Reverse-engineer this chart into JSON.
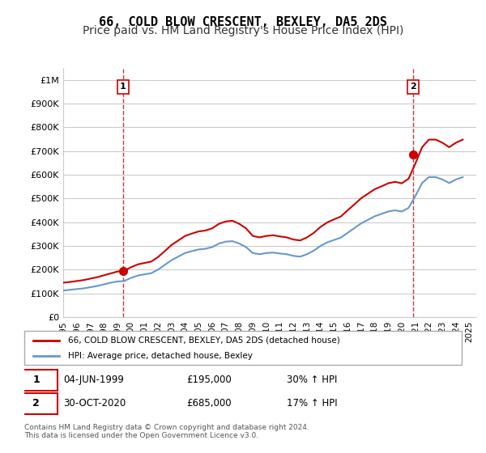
{
  "title": "66, COLD BLOW CRESCENT, BEXLEY, DA5 2DS",
  "subtitle": "Price paid vs. HM Land Registry's House Price Index (HPI)",
  "ylabel": "",
  "ylim": [
    0,
    1050000
  ],
  "yticks": [
    0,
    100000,
    200000,
    300000,
    400000,
    500000,
    600000,
    700000,
    800000,
    900000,
    1000000
  ],
  "ytick_labels": [
    "£0",
    "£100K",
    "£200K",
    "£300K",
    "£400K",
    "£500K",
    "£600K",
    "£700K",
    "£800K",
    "£900K",
    "£1M"
  ],
  "sale1": {
    "date_num": 1999.42,
    "price": 195000,
    "label": "1"
  },
  "sale2": {
    "date_num": 2020.83,
    "price": 685000,
    "label": "2"
  },
  "sale1_info": "04-JUN-1999    £195,000    30% ↑ HPI",
  "sale2_info": "30-OCT-2020    £685,000    17% ↑ HPI",
  "legend_house": "66, COLD BLOW CRESCENT, BEXLEY, DA5 2DS (detached house)",
  "legend_hpi": "HPI: Average price, detached house, Bexley",
  "footer": "Contains HM Land Registry data © Crown copyright and database right 2024.\nThis data is licensed under the Open Government Licence v3.0.",
  "house_color": "#cc0000",
  "hpi_color": "#6699cc",
  "dashed_color": "#cc0000",
  "background_chart": "#ffffff",
  "background_fig": "#ffffff",
  "grid_color": "#cccccc",
  "title_fontsize": 11,
  "subtitle_fontsize": 10,
  "hpi_data_x": [
    1995,
    1995.5,
    1996,
    1996.5,
    1997,
    1997.5,
    1998,
    1998.5,
    1999,
    1999.5,
    2000,
    2000.5,
    2001,
    2001.5,
    2002,
    2002.5,
    2003,
    2003.5,
    2004,
    2004.5,
    2005,
    2005.5,
    2006,
    2006.5,
    2007,
    2007.5,
    2008,
    2008.5,
    2009,
    2009.5,
    2010,
    2010.5,
    2011,
    2011.5,
    2012,
    2012.5,
    2013,
    2013.5,
    2014,
    2014.5,
    2015,
    2015.5,
    2016,
    2016.5,
    2017,
    2017.5,
    2018,
    2018.5,
    2019,
    2019.5,
    2020,
    2020.5,
    2021,
    2021.5,
    2022,
    2022.5,
    2023,
    2023.5,
    2024,
    2024.5
  ],
  "hpi_data_y": [
    112000,
    115000,
    118000,
    121000,
    126000,
    131000,
    138000,
    145000,
    150000,
    152000,
    165000,
    175000,
    180000,
    185000,
    200000,
    220000,
    240000,
    255000,
    270000,
    278000,
    285000,
    288000,
    295000,
    310000,
    318000,
    320000,
    310000,
    295000,
    270000,
    265000,
    270000,
    272000,
    268000,
    265000,
    258000,
    255000,
    265000,
    280000,
    300000,
    315000,
    325000,
    335000,
    355000,
    375000,
    395000,
    410000,
    425000,
    435000,
    445000,
    450000,
    445000,
    460000,
    510000,
    565000,
    590000,
    590000,
    580000,
    565000,
    580000,
    590000
  ],
  "house_data_x": [
    1995,
    1995.5,
    1996,
    1996.5,
    1997,
    1997.5,
    1998,
    1998.5,
    1999,
    1999.5,
    2000,
    2000.5,
    2001,
    2001.5,
    2002,
    2002.5,
    2003,
    2003.5,
    2004,
    2004.5,
    2005,
    2005.5,
    2006,
    2006.5,
    2007,
    2007.5,
    2008,
    2008.5,
    2009,
    2009.5,
    2010,
    2010.5,
    2011,
    2011.5,
    2012,
    2012.5,
    2013,
    2013.5,
    2014,
    2014.5,
    2015,
    2015.5,
    2016,
    2016.5,
    2017,
    2017.5,
    2018,
    2018.5,
    2019,
    2019.5,
    2020,
    2020.5,
    2021,
    2021.5,
    2022,
    2022.5,
    2023,
    2023.5,
    2024,
    2024.5
  ],
  "house_data_y": [
    145000,
    148000,
    152000,
    156000,
    162000,
    168000,
    176000,
    184000,
    192000,
    195000,
    210000,
    222000,
    228000,
    234000,
    253000,
    278000,
    304000,
    323000,
    342000,
    352000,
    361000,
    365000,
    374000,
    393000,
    403000,
    406000,
    393000,
    374000,
    342000,
    336000,
    342000,
    345000,
    340000,
    336000,
    327000,
    323000,
    336000,
    355000,
    380000,
    399000,
    412000,
    424000,
    450000,
    475000,
    501000,
    520000,
    539000,
    551000,
    564000,
    570000,
    564000,
    583000,
    647000,
    716000,
    748000,
    748000,
    735000,
    716000,
    735000,
    748000
  ],
  "xticks": [
    1995,
    1996,
    1997,
    1998,
    1999,
    2000,
    2001,
    2002,
    2003,
    2004,
    2005,
    2006,
    2007,
    2008,
    2009,
    2010,
    2011,
    2012,
    2013,
    2014,
    2015,
    2016,
    2017,
    2018,
    2019,
    2020,
    2021,
    2022,
    2023,
    2024,
    2025
  ]
}
